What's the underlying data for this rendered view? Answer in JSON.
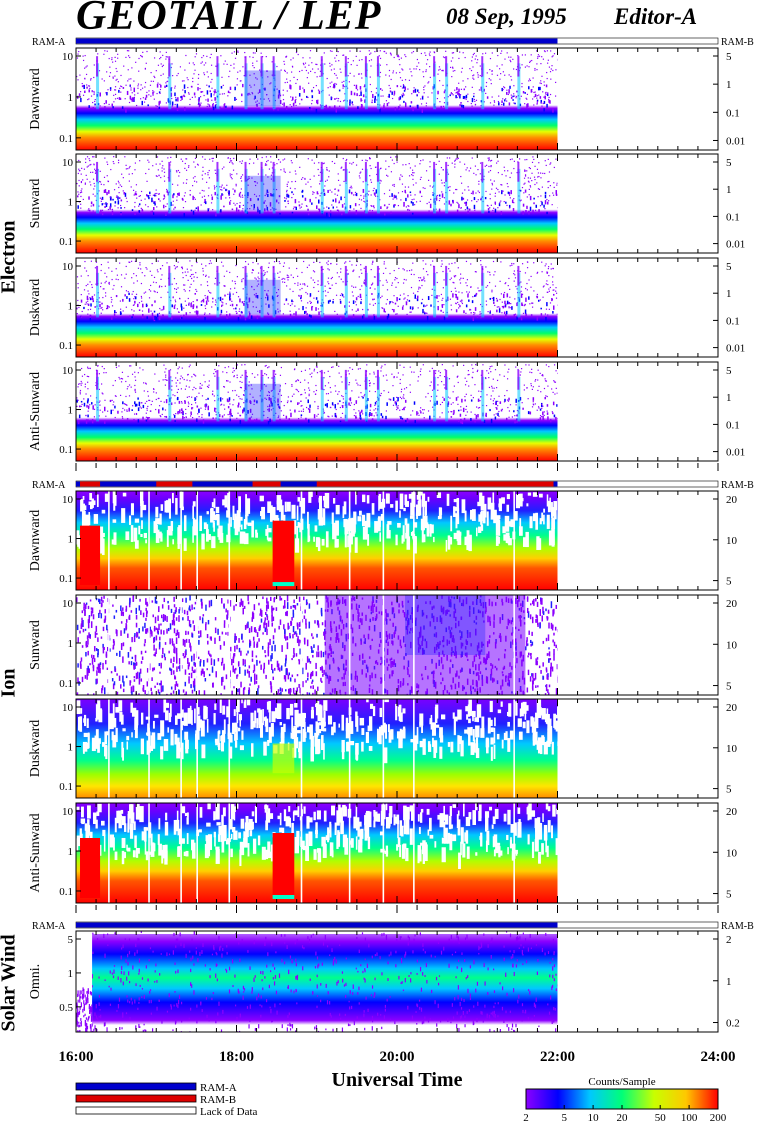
{
  "header": {
    "title": "GEOTAIL / LEP",
    "date": "08 Sep, 1995",
    "editor": "Editor-A"
  },
  "chart_data": {
    "type": "heatmap",
    "xlabel": "Universal Time",
    "x_ticks": [
      "16:00",
      "18:00",
      "20:00",
      "22:00",
      "24:00"
    ],
    "xlim_hours": [
      16,
      24
    ],
    "data_end_hour": 22,
    "mode_labels": {
      "left": "RAM-A",
      "right": "RAM-B"
    },
    "groups": [
      {
        "name": "Electron",
        "panels": [
          {
            "label": "Dawnward",
            "left_ticks": [
              "10",
              "1",
              "0.1"
            ],
            "right_ticks": [
              "5",
              "1",
              "0.1",
              "0.01"
            ]
          },
          {
            "label": "Sunward",
            "left_ticks": [
              "10",
              "1",
              "0.1"
            ],
            "right_ticks": [
              "5",
              "1",
              "0.1",
              "0.01"
            ]
          },
          {
            "label": "Duskward",
            "left_ticks": [
              "10",
              "1",
              "0.1"
            ],
            "right_ticks": [
              "5",
              "1",
              "0.1",
              "0.01"
            ]
          },
          {
            "label": "Anti-Sunward",
            "left_ticks": [
              "10",
              "1",
              "0.1"
            ],
            "right_ticks": [
              "5",
              "1",
              "0.1",
              "0.01"
            ]
          }
        ]
      },
      {
        "name": "Ion",
        "panels": [
          {
            "label": "Dawnward",
            "left_ticks": [
              "10",
              "1",
              "0.1"
            ],
            "right_ticks": [
              "20",
              "10",
              "5"
            ]
          },
          {
            "label": "Sunward",
            "left_ticks": [
              "10",
              "1",
              "0.1"
            ],
            "right_ticks": [
              "20",
              "10",
              "5"
            ]
          },
          {
            "label": "Duskward",
            "left_ticks": [
              "10",
              "1",
              "0.1"
            ],
            "right_ticks": [
              "20",
              "10",
              "5"
            ]
          },
          {
            "label": "Anti-Sunward",
            "left_ticks": [
              "10",
              "1",
              "0.1"
            ],
            "right_ticks": [
              "20",
              "10",
              "5"
            ]
          }
        ]
      },
      {
        "name": "Solar Wind",
        "panels": [
          {
            "label": "Omni.",
            "left_ticks": [
              "5",
              "1",
              "0.5"
            ],
            "right_ticks": [
              "2",
              "1",
              "0.2"
            ]
          }
        ]
      }
    ],
    "mode_legend": [
      {
        "label": "RAM-A",
        "color": "#0000cc"
      },
      {
        "label": "RAM-B",
        "color": "#dd0000"
      },
      {
        "label": "Lack of Data",
        "color": "#ffffff"
      }
    ],
    "colorbar": {
      "title": "Counts/Sample",
      "ticks": [
        "2",
        "5",
        "10",
        "20",
        "50",
        "100",
        "200"
      ],
      "scale": "log",
      "range": [
        2,
        200
      ],
      "colors": [
        "#8c00ff",
        "#0000ff",
        "#00c8ff",
        "#00ff78",
        "#c8ff00",
        "#ffc800",
        "#ff0000"
      ]
    }
  }
}
